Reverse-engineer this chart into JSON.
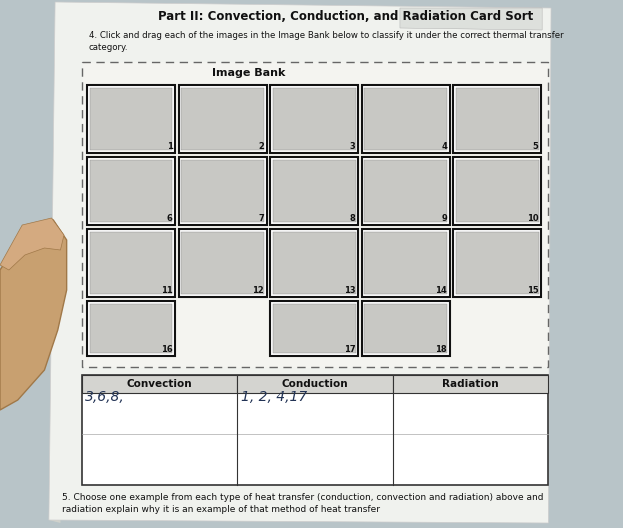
{
  "title": "Part II: Convection, Conduction, and Radiation Card Sort",
  "instruction_line1": "4. Click and drag each of the images in the Image Bank below to classify it under the correct thermal transfer",
  "instruction_line2": "category.",
  "image_bank_label": "Image Bank",
  "bg_color": "#b8c4c8",
  "paper_color": "#eceee8",
  "paper_inner_color": "#f0f2ee",
  "table_header": [
    "Convection",
    "Conduction",
    "Radiation"
  ],
  "convection_text": "3,6,8,",
  "conduction_text": "1, 2, 4,17",
  "radiation_text": "",
  "footer_line1": "5. Choose one example from each type of heat transfer (conduction, convection and radiation) above and",
  "footer_line2": "radiation explain why it is an example of that method of heat transfer",
  "card_data": [
    {
      "num": "1",
      "row": 0,
      "col": 0
    },
    {
      "num": "2",
      "row": 0,
      "col": 1
    },
    {
      "num": "3",
      "row": 0,
      "col": 2
    },
    {
      "num": "4",
      "row": 0,
      "col": 3
    },
    {
      "num": "5",
      "row": 0,
      "col": 4
    },
    {
      "num": "6",
      "row": 1,
      "col": 0
    },
    {
      "num": "7",
      "row": 1,
      "col": 1
    },
    {
      "num": "8",
      "row": 1,
      "col": 2
    },
    {
      "num": "9",
      "row": 1,
      "col": 3
    },
    {
      "num": "10",
      "row": 1,
      "col": 4
    },
    {
      "num": "11",
      "row": 2,
      "col": 0
    },
    {
      "num": "12",
      "row": 2,
      "col": 1
    },
    {
      "num": "13",
      "row": 2,
      "col": 2
    },
    {
      "num": "14",
      "row": 2,
      "col": 3
    },
    {
      "num": "15",
      "row": 2,
      "col": 4
    },
    {
      "num": "16",
      "row": 3,
      "col": 0
    },
    {
      "num": "17",
      "row": 3,
      "col": 2
    },
    {
      "num": "18",
      "row": 3,
      "col": 3
    }
  ],
  "hand_color": "#c8a070",
  "hand_shadow": "#a07848"
}
